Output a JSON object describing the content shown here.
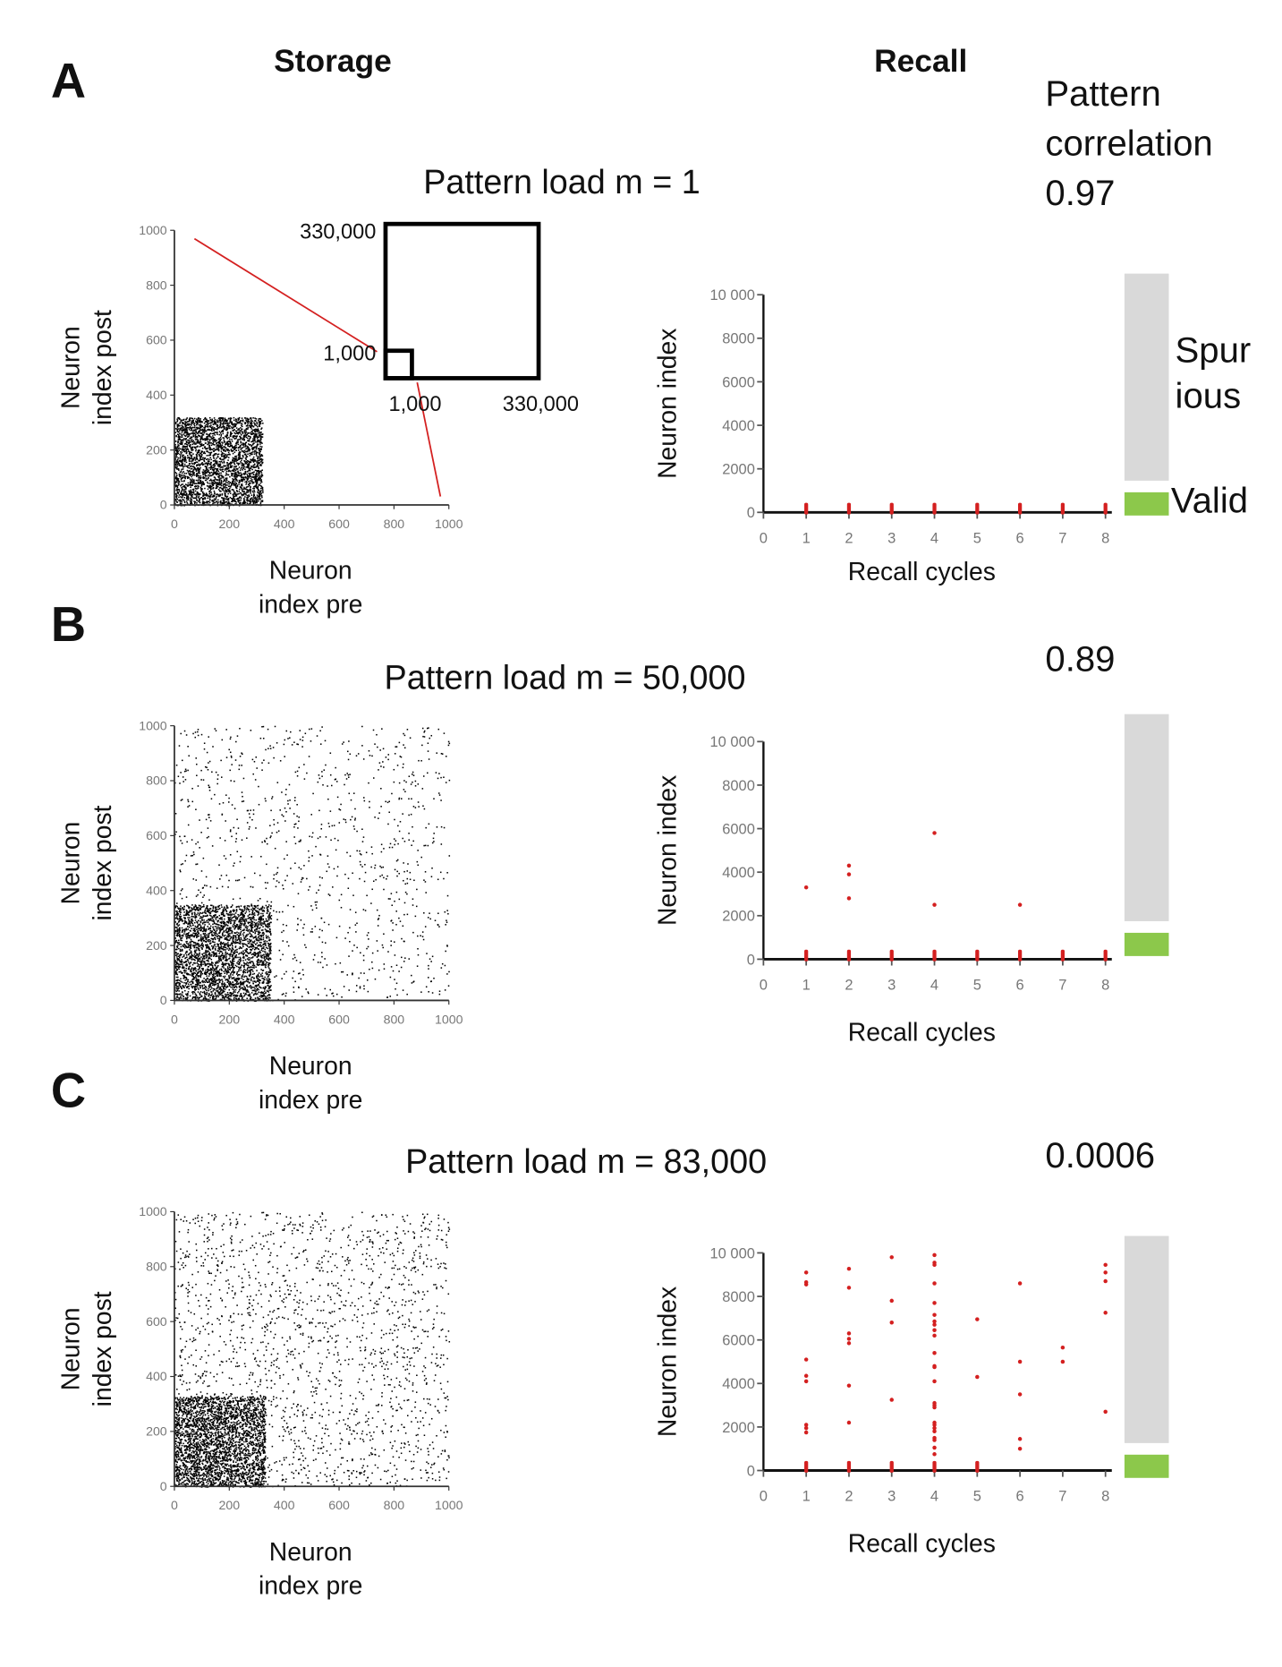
{
  "headers": {
    "storage": "Storage",
    "recall": "Recall"
  },
  "correlation_title": [
    "Pattern",
    "correlation"
  ],
  "legend": {
    "spurious": [
      "Spur",
      "ious"
    ],
    "valid": "Valid",
    "spurious_color": "#d9d9d9",
    "valid_color": "#8cc84b"
  },
  "colors": {
    "recall_points": "#d42020",
    "zoom_lines": "#d42020",
    "matrix_dots": "#000000"
  },
  "storage_axes": {
    "xlabel": [
      "Neuron",
      "index pre"
    ],
    "ylabel": [
      "Neuron",
      "index post"
    ],
    "ticks": [
      "0",
      "200",
      "400",
      "600",
      "800",
      "1000"
    ],
    "range": [
      0,
      1000
    ]
  },
  "recall_axes": {
    "xlabel": "Recall cycles",
    "ylabel": "Neuron index",
    "xticks": [
      "0",
      "1",
      "2",
      "3",
      "4",
      "5",
      "6",
      "7",
      "8"
    ],
    "yticks": [
      "0",
      "2000",
      "4000",
      "6000",
      "8000",
      "10 000"
    ],
    "xrange": [
      0,
      8
    ],
    "yrange": [
      0,
      10000
    ]
  },
  "inset": {
    "outer_label_y": "330,000",
    "inner_label_y": "1,000",
    "inner_label_x": "1,000",
    "outer_label_x": "330,000"
  },
  "panels": [
    {
      "letter": "A",
      "title": "Pattern load m = 1",
      "correlation": "0.97"
    },
    {
      "letter": "B",
      "title": "Pattern load m = 50,000",
      "correlation": "0.89"
    },
    {
      "letter": "C",
      "title": "Pattern load m = 83,000",
      "correlation": "0.0006"
    }
  ],
  "chart_data": [
    {
      "type": "scatter",
      "panel": "A",
      "role": "storage weight matrix",
      "stored_block": [
        0,
        320
      ],
      "background_connections": "none"
    },
    {
      "type": "scatter",
      "panel": "A",
      "role": "recall",
      "valid_cycles": [
        1,
        2,
        3,
        4,
        5,
        6,
        7,
        8
      ],
      "spurious_points": []
    },
    {
      "type": "scatter",
      "panel": "B",
      "role": "storage weight matrix",
      "stored_block": [
        0,
        350
      ],
      "background_connections": "sparse"
    },
    {
      "type": "scatter",
      "panel": "B",
      "role": "recall",
      "valid_cycles": [
        1,
        2,
        3,
        4,
        5,
        6,
        7,
        8
      ],
      "spurious_points": [
        [
          1,
          3300
        ],
        [
          2,
          4300
        ],
        [
          2,
          3900
        ],
        [
          2,
          2800
        ],
        [
          4,
          5800
        ],
        [
          4,
          2500
        ],
        [
          6,
          2500
        ]
      ]
    },
    {
      "type": "scatter",
      "panel": "C",
      "role": "storage weight matrix",
      "stored_block": [
        0,
        330
      ],
      "background_connections": "moderate"
    },
    {
      "type": "scatter",
      "panel": "C",
      "role": "recall",
      "valid_cycles": [
        1,
        2,
        3,
        4,
        5
      ],
      "spurious_points": [
        [
          1,
          9100
        ],
        [
          1,
          8650
        ],
        [
          1,
          8550
        ],
        [
          1,
          5100
        ],
        [
          1,
          4350
        ],
        [
          1,
          4100
        ],
        [
          1,
          2100
        ],
        [
          1,
          1950
        ],
        [
          1,
          1750
        ],
        [
          2,
          9270
        ],
        [
          2,
          8400
        ],
        [
          2,
          6300
        ],
        [
          2,
          6050
        ],
        [
          2,
          5850
        ],
        [
          2,
          3900
        ],
        [
          2,
          2200
        ],
        [
          3,
          9800
        ],
        [
          3,
          7800
        ],
        [
          3,
          6800
        ],
        [
          3,
          3250
        ],
        [
          4,
          9900
        ],
        [
          4,
          9550
        ],
        [
          4,
          9450
        ],
        [
          4,
          8600
        ],
        [
          4,
          7700
        ],
        [
          4,
          7150
        ],
        [
          4,
          6850
        ],
        [
          4,
          6700
        ],
        [
          4,
          6450
        ],
        [
          4,
          6200
        ],
        [
          4,
          5400
        ],
        [
          4,
          4800
        ],
        [
          4,
          4750
        ],
        [
          4,
          4100
        ],
        [
          4,
          3100
        ],
        [
          4,
          3000
        ],
        [
          4,
          2900
        ],
        [
          4,
          2200
        ],
        [
          4,
          2100
        ],
        [
          4,
          1950
        ],
        [
          4,
          1800
        ],
        [
          4,
          1500
        ],
        [
          4,
          1400
        ],
        [
          4,
          1050
        ],
        [
          4,
          750
        ],
        [
          5,
          6950
        ],
        [
          5,
          4300
        ],
        [
          6,
          8600
        ],
        [
          6,
          5000
        ],
        [
          6,
          3500
        ],
        [
          6,
          1450
        ],
        [
          6,
          1000
        ],
        [
          7,
          5650
        ],
        [
          7,
          5000
        ],
        [
          8,
          9450
        ],
        [
          8,
          9100
        ],
        [
          8,
          8700
        ],
        [
          8,
          7250
        ],
        [
          8,
          2700
        ]
      ]
    }
  ]
}
